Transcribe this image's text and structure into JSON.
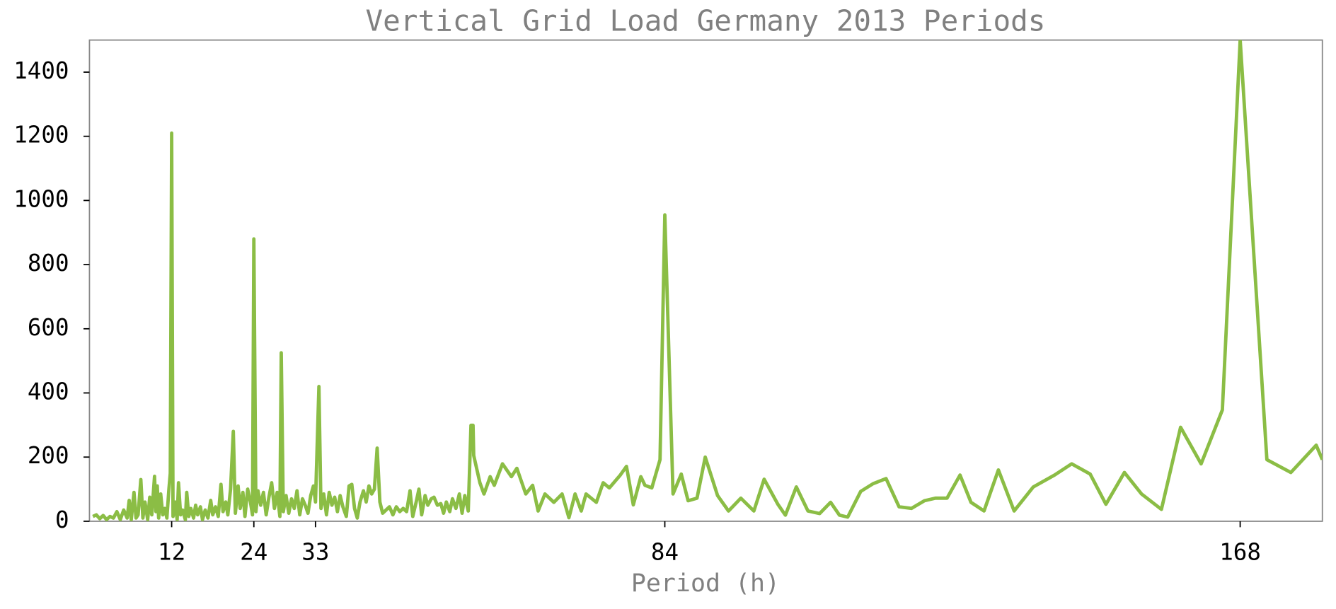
{
  "chart_data": {
    "type": "line",
    "title": "Vertical Grid Load Germany 2013 Periods",
    "xlabel": "Period (h)",
    "x": [
      0.5,
      1,
      1.5,
      2,
      2.5,
      3,
      3.5,
      4,
      4.5,
      5,
      5.5,
      5.8,
      6.1,
      6.5,
      6.8,
      7.1,
      7.5,
      7.8,
      8.1,
      8.5,
      8.8,
      9.1,
      9.5,
      9.7,
      9.9,
      10.1,
      10.4,
      10.7,
      11,
      11.3,
      11.6,
      11.8,
      12,
      12.2,
      12.5,
      12.8,
      13,
      13.3,
      13.6,
      14,
      14.2,
      14.5,
      14.8,
      15.2,
      15.5,
      15.8,
      16.2,
      16.5,
      16.9,
      17.3,
      17.7,
      18,
      18.4,
      18.8,
      19.2,
      19.5,
      19.9,
      20.2,
      20.6,
      21,
      21.3,
      21.7,
      22,
      22.4,
      22.7,
      23.1,
      23.5,
      23.8,
      24,
      24.3,
      24.6,
      25,
      25.4,
      25.8,
      26.2,
      26.6,
      27,
      27.4,
      27.8,
      28,
      28.3,
      28.7,
      29.1,
      29.5,
      29.9,
      30.3,
      30.7,
      31.1,
      31.5,
      31.9,
      32.3,
      32.7,
      33,
      33.5,
      33.8,
      34.2,
      34.6,
      35,
      35.4,
      35.8,
      36.2,
      36.6,
      37,
      37.5,
      37.9,
      38.3,
      38.7,
      39.1,
      39.5,
      40,
      40.4,
      40.8,
      41.2,
      41.6,
      42,
      42.4,
      42.8,
      43.3,
      43.8,
      44.3,
      44.8,
      45.3,
      45.8,
      46.3,
      46.8,
      47.2,
      47.7,
      48.1,
      48.5,
      49,
      49.4,
      49.9,
      50.3,
      50.8,
      51.3,
      51.7,
      52.1,
      52.6,
      53,
      53.5,
      54,
      54.4,
      54.8,
      55.3,
      55.7,
      56,
      56.1,
      57,
      57.6,
      58.5,
      59.1,
      60.3,
      61.6,
      62.4,
      63.7,
      64.7,
      65.5,
      66.5,
      67.8,
      69,
      70,
      70.9,
      71.8,
      72.5,
      74,
      75,
      75.9,
      77.5,
      78.4,
      79.4,
      80.5,
      81.1,
      82.1,
      83.3,
      84,
      85.2,
      86.4,
      87.4,
      88.7,
      89.9,
      91.7,
      93.3,
      95.1,
      97,
      98.5,
      100.5,
      101.6,
      103.2,
      104.9,
      106.6,
      108.2,
      109.5,
      110.7,
      112.6,
      114.4,
      116.3,
      118.2,
      120,
      121.9,
      123.5,
      125.2,
      127.1,
      128.7,
      130.6,
      132.7,
      135,
      137.8,
      140.9,
      143.4,
      146.1,
      148.4,
      151.1,
      153.6,
      156.5,
      159.3,
      162.3,
      165.4,
      168,
      171.9,
      175.4,
      179.1,
      180
    ],
    "series": [
      {
        "color": "#8bbd45",
        "values": [
          15,
          20,
          8,
          18,
          5,
          15,
          10,
          30,
          5,
          35,
          10,
          65,
          5,
          90,
          10,
          20,
          130,
          10,
          60,
          5,
          75,
          20,
          140,
          30,
          110,
          10,
          85,
          20,
          40,
          10,
          100,
          150,
          1210,
          15,
          60,
          5,
          120,
          20,
          35,
          5,
          90,
          15,
          40,
          10,
          50,
          20,
          45,
          5,
          35,
          10,
          65,
          20,
          45,
          15,
          115,
          30,
          60,
          20,
          100,
          280,
          25,
          110,
          40,
          90,
          15,
          100,
          60,
          20,
          880,
          30,
          95,
          50,
          90,
          20,
          75,
          120,
          40,
          90,
          15,
          525,
          30,
          80,
          25,
          70,
          40,
          95,
          20,
          70,
          50,
          25,
          80,
          110,
          60,
          420,
          40,
          85,
          20,
          90,
          50,
          75,
          30,
          80,
          45,
          15,
          110,
          115,
          40,
          10,
          60,
          95,
          60,
          110,
          85,
          100,
          228,
          60,
          25,
          35,
          45,
          20,
          45,
          30,
          40,
          30,
          95,
          15,
          60,
          100,
          20,
          80,
          50,
          70,
          75,
          50,
          55,
          25,
          60,
          30,
          70,
          40,
          85,
          25,
          80,
          32,
          299,
          299,
          205,
          120,
          85,
          139,
          112,
          179,
          139,
          165,
          85,
          112,
          32,
          85,
          59,
          85,
          11,
          85,
          32,
          85,
          59,
          120,
          104,
          144,
          171,
          51,
          139,
          112,
          104,
          192,
          955,
          85,
          147,
          64,
          72,
          200,
          80,
          32,
          72,
          32,
          131,
          53,
          19,
          107,
          32,
          24,
          59,
          19,
          13,
          93,
          117,
          133,
          45,
          40,
          64,
          72,
          72,
          144,
          59,
          32,
          160,
          32,
          107,
          144,
          179,
          147,
          53,
          152,
          85,
          37,
          293,
          179,
          347,
          1500,
          192,
          152,
          237,
          192
        ]
      }
    ],
    "xlim": [
      0,
      180
    ],
    "xticks": [
      12,
      24,
      33,
      84,
      168
    ],
    "ylim": [
      0,
      1500
    ],
    "yticks": [
      0,
      200,
      400,
      600,
      800,
      1000,
      1200,
      1400
    ],
    "grid": false
  }
}
